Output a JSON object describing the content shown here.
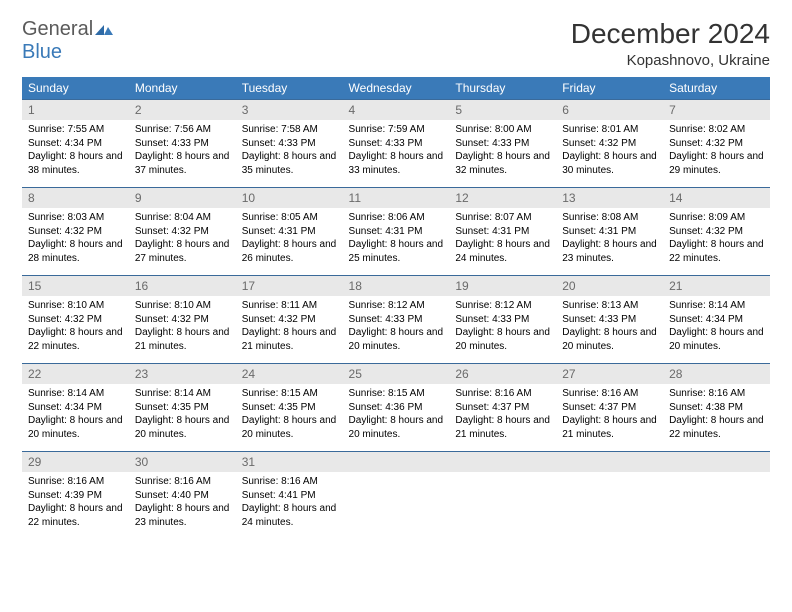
{
  "logo": {
    "text_gen": "General",
    "text_blue": "Blue"
  },
  "title": "December 2024",
  "location": "Kopashnovo, Ukraine",
  "colors": {
    "header_bg": "#3a7ab8",
    "header_text": "#ffffff",
    "daynum_bg": "#e8e8e8",
    "daynum_text": "#6a6a6a",
    "cell_border": "#3a6a9a",
    "body_text": "#000000",
    "page_bg": "#ffffff"
  },
  "weekdays": [
    "Sunday",
    "Monday",
    "Tuesday",
    "Wednesday",
    "Thursday",
    "Friday",
    "Saturday"
  ],
  "days": [
    {
      "n": "1",
      "sr": "7:55 AM",
      "ss": "4:34 PM",
      "dl": "8 hours and 38 minutes."
    },
    {
      "n": "2",
      "sr": "7:56 AM",
      "ss": "4:33 PM",
      "dl": "8 hours and 37 minutes."
    },
    {
      "n": "3",
      "sr": "7:58 AM",
      "ss": "4:33 PM",
      "dl": "8 hours and 35 minutes."
    },
    {
      "n": "4",
      "sr": "7:59 AM",
      "ss": "4:33 PM",
      "dl": "8 hours and 33 minutes."
    },
    {
      "n": "5",
      "sr": "8:00 AM",
      "ss": "4:33 PM",
      "dl": "8 hours and 32 minutes."
    },
    {
      "n": "6",
      "sr": "8:01 AM",
      "ss": "4:32 PM",
      "dl": "8 hours and 30 minutes."
    },
    {
      "n": "7",
      "sr": "8:02 AM",
      "ss": "4:32 PM",
      "dl": "8 hours and 29 minutes."
    },
    {
      "n": "8",
      "sr": "8:03 AM",
      "ss": "4:32 PM",
      "dl": "8 hours and 28 minutes."
    },
    {
      "n": "9",
      "sr": "8:04 AM",
      "ss": "4:32 PM",
      "dl": "8 hours and 27 minutes."
    },
    {
      "n": "10",
      "sr": "8:05 AM",
      "ss": "4:31 PM",
      "dl": "8 hours and 26 minutes."
    },
    {
      "n": "11",
      "sr": "8:06 AM",
      "ss": "4:31 PM",
      "dl": "8 hours and 25 minutes."
    },
    {
      "n": "12",
      "sr": "8:07 AM",
      "ss": "4:31 PM",
      "dl": "8 hours and 24 minutes."
    },
    {
      "n": "13",
      "sr": "8:08 AM",
      "ss": "4:31 PM",
      "dl": "8 hours and 23 minutes."
    },
    {
      "n": "14",
      "sr": "8:09 AM",
      "ss": "4:32 PM",
      "dl": "8 hours and 22 minutes."
    },
    {
      "n": "15",
      "sr": "8:10 AM",
      "ss": "4:32 PM",
      "dl": "8 hours and 22 minutes."
    },
    {
      "n": "16",
      "sr": "8:10 AM",
      "ss": "4:32 PM",
      "dl": "8 hours and 21 minutes."
    },
    {
      "n": "17",
      "sr": "8:11 AM",
      "ss": "4:32 PM",
      "dl": "8 hours and 21 minutes."
    },
    {
      "n": "18",
      "sr": "8:12 AM",
      "ss": "4:33 PM",
      "dl": "8 hours and 20 minutes."
    },
    {
      "n": "19",
      "sr": "8:12 AM",
      "ss": "4:33 PM",
      "dl": "8 hours and 20 minutes."
    },
    {
      "n": "20",
      "sr": "8:13 AM",
      "ss": "4:33 PM",
      "dl": "8 hours and 20 minutes."
    },
    {
      "n": "21",
      "sr": "8:14 AM",
      "ss": "4:34 PM",
      "dl": "8 hours and 20 minutes."
    },
    {
      "n": "22",
      "sr": "8:14 AM",
      "ss": "4:34 PM",
      "dl": "8 hours and 20 minutes."
    },
    {
      "n": "23",
      "sr": "8:14 AM",
      "ss": "4:35 PM",
      "dl": "8 hours and 20 minutes."
    },
    {
      "n": "24",
      "sr": "8:15 AM",
      "ss": "4:35 PM",
      "dl": "8 hours and 20 minutes."
    },
    {
      "n": "25",
      "sr": "8:15 AM",
      "ss": "4:36 PM",
      "dl": "8 hours and 20 minutes."
    },
    {
      "n": "26",
      "sr": "8:16 AM",
      "ss": "4:37 PM",
      "dl": "8 hours and 21 minutes."
    },
    {
      "n": "27",
      "sr": "8:16 AM",
      "ss": "4:37 PM",
      "dl": "8 hours and 21 minutes."
    },
    {
      "n": "28",
      "sr": "8:16 AM",
      "ss": "4:38 PM",
      "dl": "8 hours and 22 minutes."
    },
    {
      "n": "29",
      "sr": "8:16 AM",
      "ss": "4:39 PM",
      "dl": "8 hours and 22 minutes."
    },
    {
      "n": "30",
      "sr": "8:16 AM",
      "ss": "4:40 PM",
      "dl": "8 hours and 23 minutes."
    },
    {
      "n": "31",
      "sr": "8:16 AM",
      "ss": "4:41 PM",
      "dl": "8 hours and 24 minutes."
    }
  ],
  "labels": {
    "sunrise": "Sunrise: ",
    "sunset": "Sunset: ",
    "daylight": "Daylight: "
  }
}
